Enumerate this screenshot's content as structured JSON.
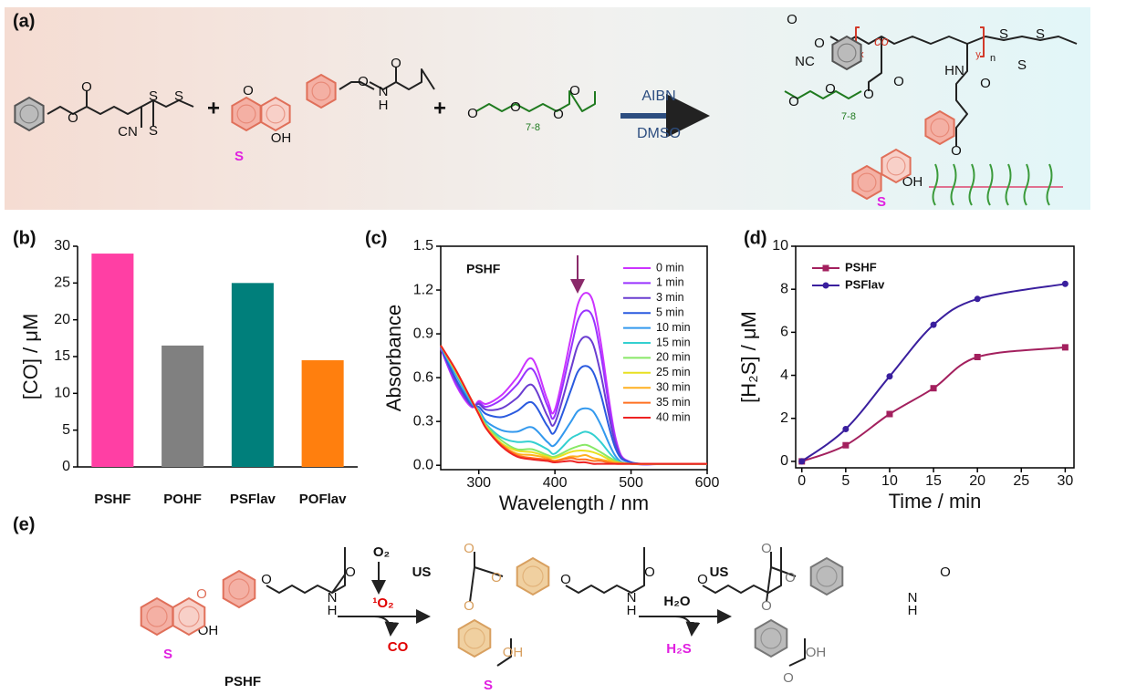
{
  "panel_labels": [
    "(a)",
    "(b)",
    "(c)",
    "(d)",
    "(e)"
  ],
  "scheme_a": {
    "labels": [
      "O",
      "O",
      "S",
      "S",
      "S",
      "CN",
      "+",
      "O",
      "O",
      "N",
      "H",
      "O",
      "OH",
      "S",
      "+",
      "O",
      "O",
      "7-8",
      "O",
      "O",
      "AIBN",
      "DMSO",
      "O",
      "O",
      "NC",
      "co",
      "x",
      "y",
      "n",
      "S",
      "S",
      "S",
      "O",
      "O",
      "HN",
      "O",
      "O",
      "7-8",
      "O",
      "O",
      "OH",
      "S"
    ]
  },
  "scheme_e": {
    "labels": [
      "O",
      "OH",
      "S",
      "O",
      "N",
      "H",
      "O",
      "PSHF",
      "O₂",
      "US",
      "¹O₂",
      "CO",
      "O",
      "O",
      "O",
      "OH",
      "S",
      "O",
      "N",
      "H",
      "O",
      "H₂O",
      "US",
      "H₂S",
      "O",
      "O",
      "O",
      "OH",
      "O",
      "O",
      "N",
      "H",
      "O"
    ]
  },
  "chart_data": [
    {
      "type": "bar",
      "ylabel": "[CO] / μM",
      "categories": [
        "PSHF",
        "POHF",
        "PSFlav",
        "POFlav"
      ],
      "values": [
        29,
        16.5,
        25,
        14.5
      ],
      "colors": [
        "#ff3fa4",
        "#808080",
        "#007f7b",
        "#ff7f0e"
      ],
      "ylim": [
        0,
        30
      ],
      "yticks": [
        0,
        5,
        10,
        15,
        20,
        25,
        30
      ],
      "frame": "axes"
    },
    {
      "type": "line",
      "xlabel": "Wavelength / nm",
      "ylabel": "Absorbance",
      "annotation": "PSHF",
      "x": [
        250,
        270,
        290,
        300,
        310,
        330,
        350,
        370,
        390,
        400,
        420,
        430,
        440,
        450,
        460,
        480,
        500,
        550,
        600
      ],
      "xlim": [
        250,
        600
      ],
      "xticks": [
        300,
        400,
        500,
        600
      ],
      "ylim": [
        -0.03,
        1.5
      ],
      "yticks": [
        {
          "value": 0,
          "label": "0.0"
        },
        0.3,
        0.6,
        0.9,
        1.2,
        1.5
      ],
      "frame": "box",
      "legend": "upper right",
      "series": [
        {
          "name": "0 min",
          "color": "#cc33ff",
          "values": [
            0.8,
            0.55,
            0.4,
            0.44,
            0.42,
            0.48,
            0.6,
            0.73,
            0.45,
            0.38,
            0.85,
            1.1,
            1.18,
            1.12,
            0.85,
            0.18,
            0.02,
            0.01,
            0.01
          ]
        },
        {
          "name": "1 min",
          "color": "#9933ff",
          "values": [
            0.8,
            0.56,
            0.41,
            0.43,
            0.4,
            0.45,
            0.55,
            0.66,
            0.41,
            0.34,
            0.77,
            0.99,
            1.06,
            1.01,
            0.77,
            0.16,
            0.02,
            0.01,
            0.01
          ]
        },
        {
          "name": "3 min",
          "color": "#6a3dd0",
          "values": [
            0.81,
            0.58,
            0.41,
            0.42,
            0.38,
            0.39,
            0.46,
            0.55,
            0.34,
            0.29,
            0.64,
            0.82,
            0.88,
            0.83,
            0.63,
            0.14,
            0.02,
            0.01,
            0.01
          ]
        },
        {
          "name": "5 min",
          "color": "#2a5adf",
          "values": [
            0.81,
            0.59,
            0.42,
            0.4,
            0.35,
            0.33,
            0.37,
            0.43,
            0.27,
            0.23,
            0.5,
            0.64,
            0.68,
            0.64,
            0.49,
            0.11,
            0.02,
            0.01,
            0.01
          ]
        },
        {
          "name": "10 min",
          "color": "#3399ee",
          "values": [
            0.81,
            0.62,
            0.43,
            0.38,
            0.3,
            0.24,
            0.23,
            0.26,
            0.16,
            0.14,
            0.29,
            0.37,
            0.39,
            0.37,
            0.28,
            0.06,
            0.01,
            0.01,
            0.01
          ]
        },
        {
          "name": "15 min",
          "color": "#33d0d0",
          "values": [
            0.82,
            0.63,
            0.44,
            0.37,
            0.28,
            0.19,
            0.16,
            0.16,
            0.11,
            0.08,
            0.18,
            0.21,
            0.23,
            0.21,
            0.16,
            0.04,
            0.01,
            0.01,
            0.01
          ]
        },
        {
          "name": "20 min",
          "color": "#88e866",
          "values": [
            0.82,
            0.64,
            0.45,
            0.36,
            0.27,
            0.17,
            0.11,
            0.11,
            0.07,
            0.06,
            0.11,
            0.13,
            0.14,
            0.12,
            0.09,
            0.03,
            0.01,
            0.01,
            0.01
          ]
        },
        {
          "name": "25 min",
          "color": "#e8e020",
          "values": [
            0.82,
            0.64,
            0.45,
            0.36,
            0.26,
            0.15,
            0.1,
            0.09,
            0.06,
            0.05,
            0.09,
            0.1,
            0.1,
            0.09,
            0.07,
            0.02,
            0.01,
            0.01,
            0.01
          ]
        },
        {
          "name": "30 min",
          "color": "#ffb020",
          "values": [
            0.82,
            0.65,
            0.45,
            0.35,
            0.26,
            0.14,
            0.08,
            0.07,
            0.05,
            0.03,
            0.06,
            0.06,
            0.07,
            0.05,
            0.04,
            0.02,
            0.01,
            0.01,
            0.01
          ]
        },
        {
          "name": "35 min",
          "color": "#ff7020",
          "values": [
            0.82,
            0.65,
            0.45,
            0.35,
            0.25,
            0.14,
            0.07,
            0.05,
            0.04,
            0.03,
            0.05,
            0.04,
            0.04,
            0.03,
            0.03,
            0.01,
            0.01,
            0.01,
            0.01
          ]
        },
        {
          "name": "40 min",
          "color": "#ee2222",
          "values": [
            0.82,
            0.65,
            0.45,
            0.35,
            0.25,
            0.13,
            0.06,
            0.04,
            0.03,
            0.02,
            0.03,
            0.02,
            0.02,
            0.01,
            0.01,
            0.01,
            0.01,
            0.01,
            0.01
          ]
        }
      ]
    },
    {
      "type": "line",
      "xlabel": "Time / min",
      "ylabel": "[H₂S] / μM",
      "x": [
        0,
        5,
        10,
        15,
        20,
        30
      ],
      "xlim": [
        -0.7,
        31
      ],
      "xticks": [
        0,
        5,
        10,
        15,
        20,
        25,
        30
      ],
      "ylim": [
        -0.3,
        10
      ],
      "yticks": [
        0,
        2,
        4,
        6,
        8,
        10
      ],
      "frame": "box",
      "legend": "upper left",
      "legend_colored_text": true,
      "series": [
        {
          "name": "PSHF",
          "color": "#a3205e",
          "marker": "square",
          "values": [
            0,
            0.75,
            2.2,
            3.4,
            4.85,
            5.3
          ]
        },
        {
          "name": "PSFlav",
          "color": "#3a1f9e",
          "marker": "circle",
          "values": [
            0,
            1.5,
            3.95,
            6.35,
            7.55,
            8.25
          ]
        }
      ]
    }
  ]
}
